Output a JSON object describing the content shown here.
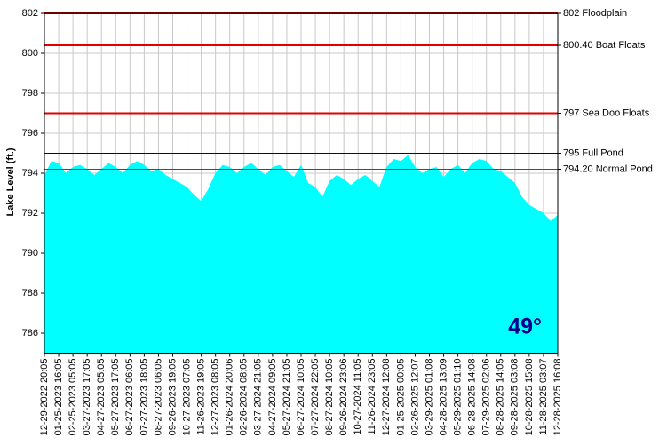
{
  "chart_data": {
    "type": "area",
    "y_label": "Lake Level (ft.)",
    "annotation": "49°",
    "color": "#00ffff",
    "grid": true,
    "ylim": [
      785,
      802
    ],
    "yticks": [
      786,
      788,
      790,
      792,
      794,
      796,
      798,
      800,
      802
    ],
    "categories": [
      "12-29-2022 20:05",
      null,
      "01-25-2023 16:05",
      null,
      "02-25-2023 05:05",
      null,
      "03-27-2023 17:05",
      null,
      "04-27-2023 05:05",
      null,
      "05-27-2023 17:05",
      null,
      "06-27-2023 06:05",
      null,
      "07-27-2023 18:05",
      null,
      "08-27-2023 06:05",
      null,
      "09-26-2023 19:05",
      null,
      "10-27-2023 07:05",
      null,
      "11-26-2023 19:05",
      null,
      "12-27-2023 08:05",
      null,
      "01-26-2024 20:06",
      null,
      "02-26-2024 08:05",
      null,
      "03-27-2024 21:05",
      null,
      "04-27-2024 09:05",
      null,
      "05-27-2024 21:05",
      null,
      "06-27-2024 10:05",
      null,
      "07-27-2024 22:05",
      null,
      "08-27-2024 10:05",
      null,
      "09-26-2024 23:06",
      null,
      "10-27-2024 11:05",
      null,
      "11-26-2024 23:05",
      null,
      "12-27-2024 12:08",
      null,
      "01-25-2025 00:05",
      null,
      "02-26-2025 12:07",
      null,
      "03-29-2025 01:08",
      null,
      "04-28-2025 13:09",
      null,
      "05-29-2025 01:10",
      null,
      "06-28-2025 14:08",
      null,
      "07-29-2025 02:06",
      null,
      "08-28-2025 14:05",
      null,
      "09-28-2025 03:08",
      null,
      "10-28-2025 15:08",
      null,
      "11-28-2025 03:07",
      null,
      "12-28-2025 16:08"
    ],
    "values": [
      793.9,
      794.6,
      794.5,
      794.0,
      794.3,
      794.4,
      794.2,
      793.9,
      794.2,
      794.5,
      794.3,
      794.0,
      794.4,
      794.6,
      794.4,
      794.1,
      794.2,
      793.9,
      793.7,
      793.5,
      793.3,
      792.9,
      792.6,
      793.2,
      794.0,
      794.4,
      794.3,
      794.0,
      794.3,
      794.5,
      794.2,
      793.9,
      794.3,
      794.4,
      794.1,
      793.8,
      794.4,
      793.5,
      793.3,
      792.8,
      793.6,
      793.9,
      793.7,
      793.4,
      793.7,
      793.9,
      793.6,
      793.3,
      794.3,
      794.7,
      794.6,
      794.9,
      794.3,
      794.0,
      794.2,
      794.3,
      793.8,
      794.2,
      794.4,
      794.0,
      794.5,
      794.7,
      794.6,
      794.2,
      794.1,
      793.8,
      793.5,
      792.8,
      792.4,
      792.2,
      792.0,
      791.6,
      791.9
    ],
    "reference_lines": [
      {
        "value": 802,
        "label": "802 Floodplain",
        "color": "#e00000"
      },
      {
        "value": 800.4,
        "label": "800.40 Boat Floats",
        "color": "#e00000"
      },
      {
        "value": 797,
        "label": "797 Sea Doo Floats",
        "color": "#e00000"
      },
      {
        "value": 795,
        "label": "795 Full Pond",
        "color": "#00007f"
      },
      {
        "value": 794.2,
        "label": "794.20 Normal Pond",
        "color": "#008000"
      }
    ]
  }
}
